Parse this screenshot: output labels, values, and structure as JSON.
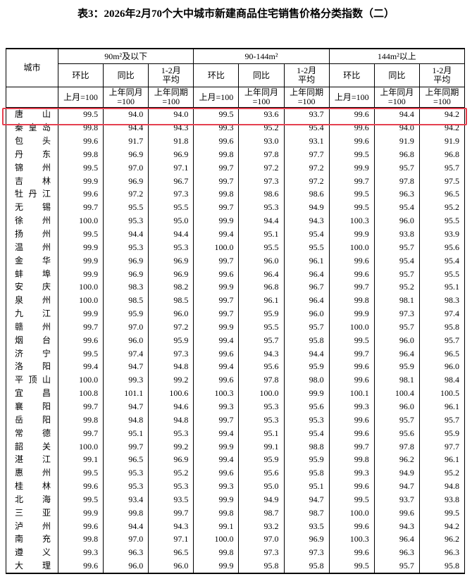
{
  "title": "表3：2026年2月70个大中城市新建商品住宅销售价格分类指数（二）",
  "table": {
    "city_header": "城市",
    "groups": [
      "90m²及以下",
      "90-144m²",
      "144m²以上"
    ],
    "subheaders": [
      [
        "环比"
      ],
      [
        "同比"
      ],
      [
        "1-2月",
        "平均"
      ]
    ],
    "bases": [
      [
        "上月=100"
      ],
      [
        "上年同月",
        "=100"
      ],
      [
        "上年同期",
        "=100"
      ]
    ],
    "rows": [
      [
        "唐山",
        "99.5",
        "94.0",
        "94.0",
        "99.5",
        "93.6",
        "93.7",
        "99.6",
        "94.4",
        "94.2"
      ],
      [
        "秦皇岛",
        "99.8",
        "94.4",
        "94.3",
        "99.3",
        "95.2",
        "95.4",
        "99.6",
        "94.0",
        "94.2"
      ],
      [
        "包头",
        "99.6",
        "91.7",
        "91.8",
        "99.6",
        "93.0",
        "93.1",
        "99.6",
        "91.9",
        "91.9"
      ],
      [
        "丹东",
        "99.8",
        "96.9",
        "96.9",
        "99.8",
        "97.8",
        "97.7",
        "99.5",
        "96.8",
        "96.8"
      ],
      [
        "锦州",
        "99.5",
        "97.0",
        "97.1",
        "99.7",
        "97.2",
        "97.2",
        "99.9",
        "95.7",
        "95.7"
      ],
      [
        "吉林",
        "99.9",
        "96.9",
        "96.7",
        "99.7",
        "97.3",
        "97.2",
        "99.7",
        "97.8",
        "97.5"
      ],
      [
        "牡丹江",
        "99.6",
        "97.2",
        "97.3",
        "99.8",
        "98.6",
        "98.6",
        "99.5",
        "96.3",
        "96.5"
      ],
      [
        "无锡",
        "99.7",
        "95.5",
        "95.5",
        "99.7",
        "95.3",
        "94.9",
        "99.5",
        "95.4",
        "95.2"
      ],
      [
        "徐州",
        "100.0",
        "95.3",
        "95.0",
        "99.9",
        "94.4",
        "94.3",
        "100.3",
        "96.0",
        "95.5"
      ],
      [
        "扬州",
        "99.5",
        "94.4",
        "94.4",
        "99.4",
        "95.1",
        "95.4",
        "99.9",
        "93.8",
        "93.9"
      ],
      [
        "温州",
        "99.9",
        "95.3",
        "95.3",
        "100.0",
        "95.5",
        "95.5",
        "100.0",
        "95.7",
        "95.6"
      ],
      [
        "金华",
        "99.9",
        "96.9",
        "96.9",
        "99.7",
        "96.0",
        "96.1",
        "99.6",
        "95.4",
        "95.4"
      ],
      [
        "蚌埠",
        "99.9",
        "96.9",
        "96.9",
        "99.6",
        "96.4",
        "96.4",
        "99.6",
        "95.7",
        "95.5"
      ],
      [
        "安庆",
        "100.0",
        "98.3",
        "98.2",
        "99.9",
        "96.8",
        "96.7",
        "99.7",
        "95.2",
        "95.1"
      ],
      [
        "泉州",
        "100.0",
        "98.5",
        "98.5",
        "99.7",
        "96.1",
        "96.4",
        "99.8",
        "98.1",
        "98.3"
      ],
      [
        "九江",
        "99.9",
        "95.9",
        "96.0",
        "99.7",
        "95.9",
        "96.0",
        "99.9",
        "97.3",
        "97.4"
      ],
      [
        "赣州",
        "99.7",
        "97.0",
        "97.2",
        "99.9",
        "95.5",
        "95.7",
        "100.0",
        "95.7",
        "95.8"
      ],
      [
        "烟台",
        "99.6",
        "96.0",
        "95.9",
        "99.4",
        "95.7",
        "95.8",
        "99.5",
        "96.0",
        "95.7"
      ],
      [
        "济宁",
        "99.5",
        "97.4",
        "97.3",
        "99.6",
        "94.3",
        "94.4",
        "99.7",
        "96.4",
        "96.5"
      ],
      [
        "洛阳",
        "99.4",
        "94.7",
        "94.8",
        "99.4",
        "95.6",
        "95.9",
        "99.6",
        "95.9",
        "96.0"
      ],
      [
        "平顶山",
        "100.0",
        "99.3",
        "99.2",
        "99.6",
        "97.8",
        "98.0",
        "99.6",
        "98.1",
        "98.4"
      ],
      [
        "宜昌",
        "100.8",
        "101.1",
        "100.6",
        "100.3",
        "100.0",
        "99.9",
        "100.1",
        "100.4",
        "100.5"
      ],
      [
        "襄阳",
        "99.7",
        "94.7",
        "94.6",
        "99.3",
        "95.3",
        "95.6",
        "99.3",
        "96.0",
        "96.1"
      ],
      [
        "岳阳",
        "99.8",
        "94.8",
        "94.8",
        "99.7",
        "95.3",
        "95.3",
        "99.6",
        "95.7",
        "95.7"
      ],
      [
        "常德",
        "99.7",
        "95.1",
        "95.3",
        "99.4",
        "95.1",
        "95.4",
        "99.6",
        "95.6",
        "95.9"
      ],
      [
        "韶关",
        "100.0",
        "99.7",
        "99.2",
        "99.9",
        "99.1",
        "98.8",
        "99.7",
        "97.8",
        "97.7"
      ],
      [
        "湛江",
        "99.1",
        "96.5",
        "96.9",
        "99.4",
        "95.9",
        "95.9",
        "99.8",
        "96.2",
        "96.1"
      ],
      [
        "惠州",
        "99.5",
        "95.3",
        "95.2",
        "99.6",
        "95.6",
        "95.8",
        "99.3",
        "94.9",
        "95.2"
      ],
      [
        "桂林",
        "99.6",
        "95.3",
        "95.3",
        "99.3",
        "95.0",
        "95.1",
        "99.6",
        "94.7",
        "94.8"
      ],
      [
        "北海",
        "99.5",
        "93.4",
        "93.5",
        "99.9",
        "94.9",
        "94.7",
        "99.5",
        "93.7",
        "93.8"
      ],
      [
        "三亚",
        "99.9",
        "99.8",
        "99.7",
        "99.8",
        "98.7",
        "98.7",
        "100.0",
        "99.6",
        "99.5"
      ],
      [
        "泸州",
        "99.6",
        "94.4",
        "94.3",
        "99.1",
        "93.2",
        "93.5",
        "99.6",
        "94.3",
        "94.2"
      ],
      [
        "南充",
        "99.8",
        "97.0",
        "97.1",
        "100.0",
        "97.0",
        "96.9",
        "100.3",
        "96.4",
        "96.2"
      ],
      [
        "遵义",
        "99.3",
        "96.3",
        "96.5",
        "99.8",
        "97.3",
        "97.3",
        "99.6",
        "96.3",
        "96.3"
      ],
      [
        "大理",
        "99.6",
        "96.0",
        "96.0",
        "99.9",
        "95.8",
        "95.8",
        "99.5",
        "95.7",
        "95.8"
      ]
    ]
  }
}
